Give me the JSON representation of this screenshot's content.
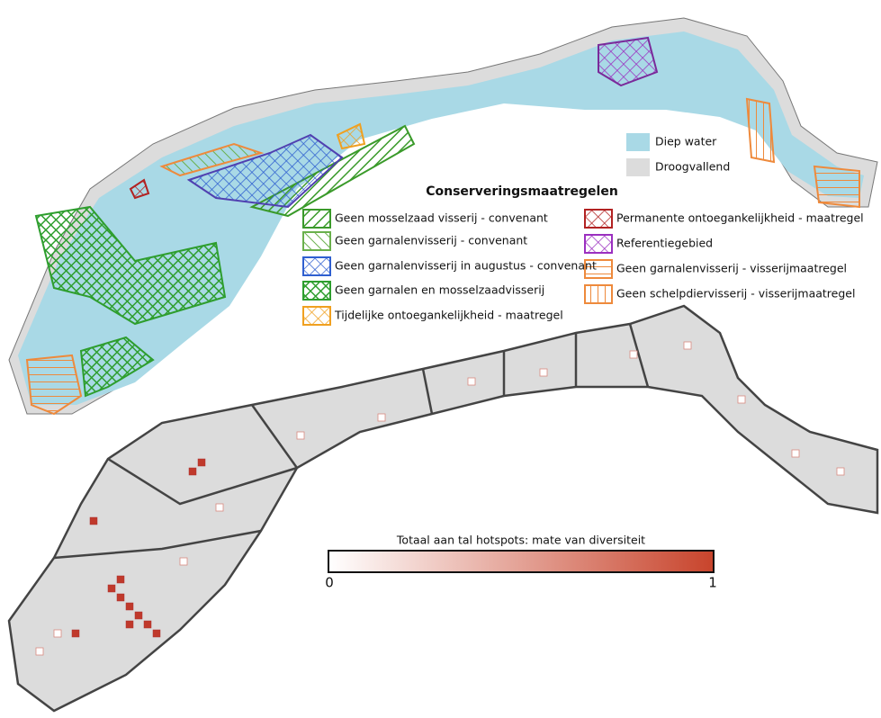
{
  "legend": {
    "water": [
      "Diep water",
      "Droogvallend"
    ],
    "title": "Conserveringsmaatregelen",
    "items": [
      "Geen mosselzaad visserij - convenant",
      "Geen garnalenvisserij - convenant",
      "Geen garnalenvisserij in augustus - convenant",
      "Geen garnalen en mosselzaadvisserij",
      "Tijdelijke ontoegankelijkheid - maatregel",
      "Permanente ontoegankelijkheid - maatregel",
      "Referentiegebied",
      "Geen garnalenvisserij - visserijmaatregel",
      "Geen schelpdiervisserij - visserijmaatregel"
    ]
  },
  "colorbar": {
    "title": "Totaal aan tal hotspots: mate van diversiteit",
    "min": 0,
    "max": 1
  }
}
